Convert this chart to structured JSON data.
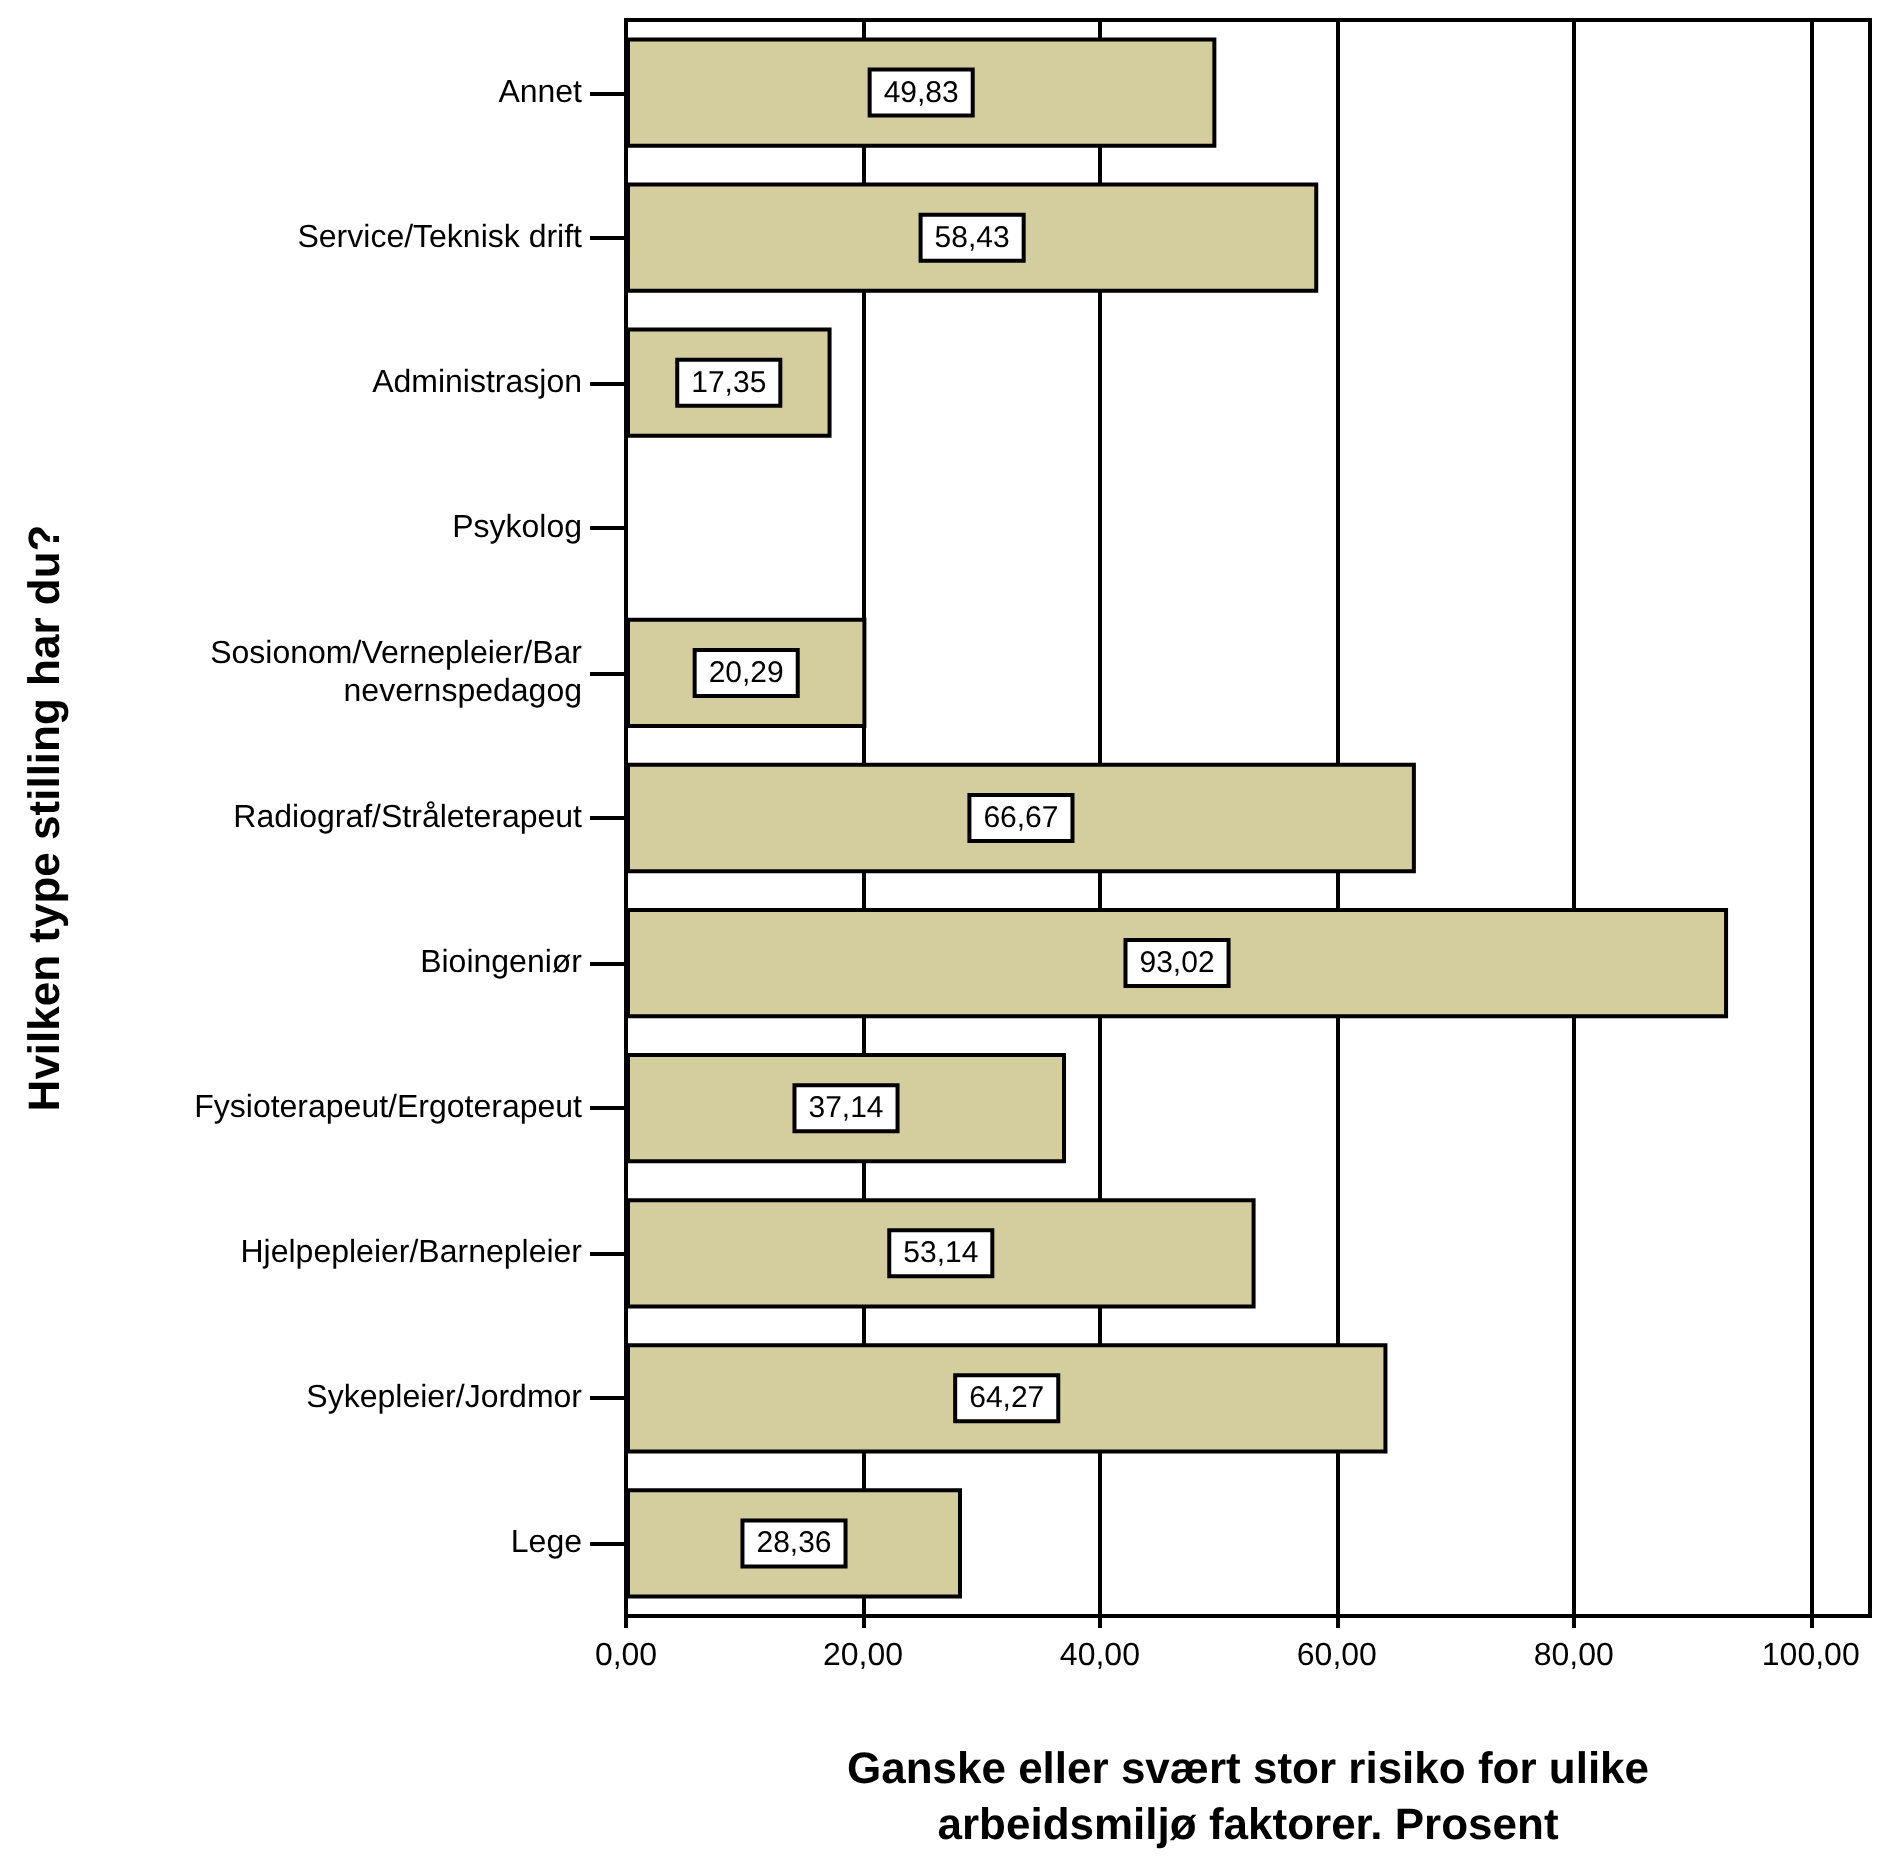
{
  "chart_data": {
    "type": "bar",
    "orientation": "horizontal",
    "xlabel": "Ganske eller svært stor risiko for ulike\narbeidsmiljø faktorer. Prosent",
    "ylabel": "Hvilken type stilling har du?",
    "categories": [
      "Annet",
      "Service/Teknisk drift",
      "Administrasjon",
      "Psykolog",
      "Sosionom/Vernepleier/Bar\nnevernspedagog",
      "Radiograf/Stråleterapeut",
      "Bioingeniør",
      "Fysioterapeut/Ergoterapeut",
      "Hjelpepleier/Barnepleier",
      "Sykepleier/Jordmor",
      "Lege"
    ],
    "values": [
      49.83,
      58.43,
      17.35,
      null,
      20.29,
      66.67,
      93.02,
      37.14,
      53.14,
      64.27,
      28.36
    ],
    "value_labels": [
      "49,83",
      "58,43",
      "17,35",
      null,
      "20,29",
      "66,67",
      "93,02",
      "37,14",
      "53,14",
      "64,27",
      "28,36"
    ],
    "color": "#d4cd9d",
    "xlim": [
      0,
      105
    ],
    "xticks": [
      {
        "value": 0,
        "label": "0,00"
      },
      {
        "value": 20,
        "label": "20,00"
      },
      {
        "value": 40,
        "label": "40,00"
      },
      {
        "value": 60,
        "label": "60,00"
      },
      {
        "value": 80,
        "label": "80,00"
      },
      {
        "value": 100,
        "label": "100,00"
      }
    ],
    "grid": "x"
  }
}
